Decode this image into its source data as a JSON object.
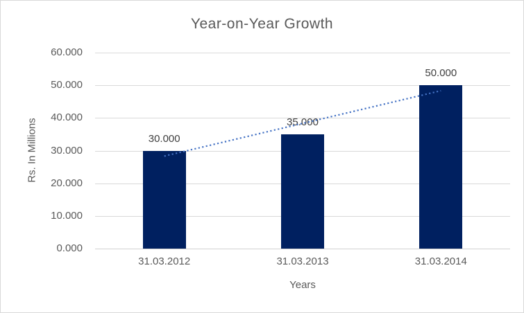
{
  "chart_data": {
    "type": "bar",
    "title": "Year-on-Year Growth",
    "xlabel": "Years",
    "ylabel": "Rs. In Millions",
    "categories": [
      "31.03.2012",
      "31.03.2013",
      "31.03.2014"
    ],
    "values": [
      30,
      35,
      50
    ],
    "data_labels": [
      "30.000",
      "35.000",
      "50.000"
    ],
    "y_ticks": [
      "0.000",
      "10.000",
      "20.000",
      "30.000",
      "40.000",
      "50.000",
      "60.000"
    ],
    "y_tick_values": [
      0,
      10,
      20,
      30,
      40,
      50,
      60
    ],
    "ylim": [
      0,
      60
    ],
    "grid": true,
    "legend": "none",
    "bar_color": "#002060",
    "trendline": {
      "type": "linear",
      "style": "dotted",
      "color": "#4472C4",
      "start_value": 28.33,
      "end_value": 48.33
    },
    "text_color": "#595959",
    "data_label_color": "#404040",
    "gridline_color": "#d9d9d9",
    "background_color": "#ffffff",
    "border_color": "#d9d9d9"
  }
}
